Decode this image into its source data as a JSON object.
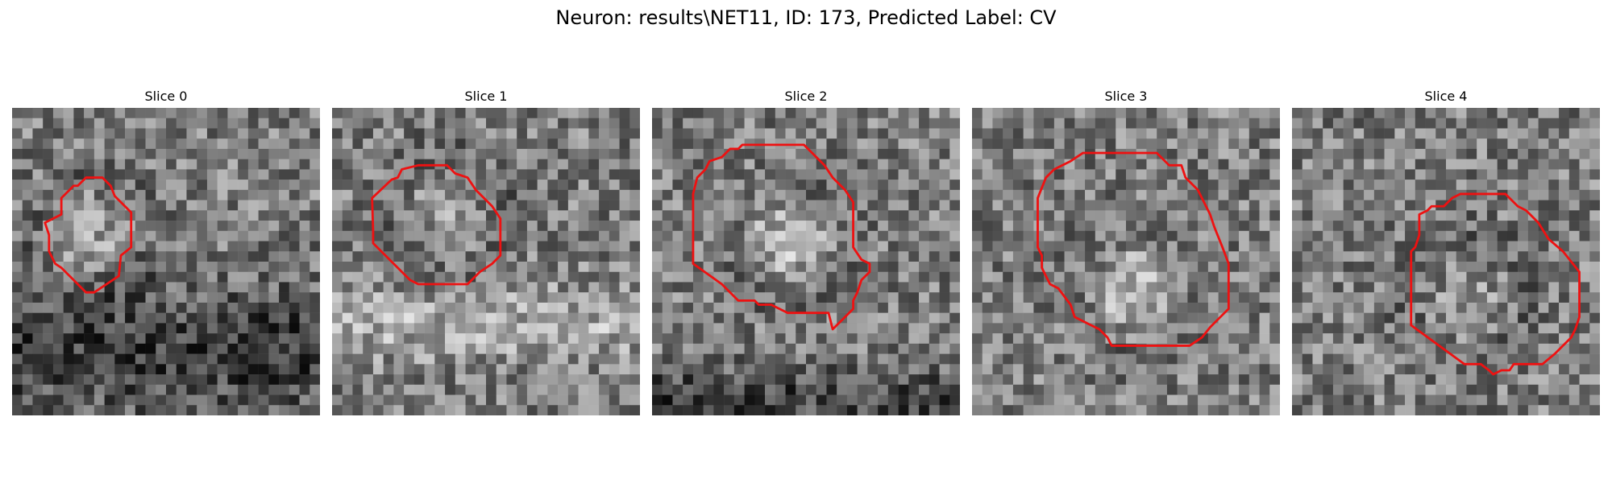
{
  "figure": {
    "title": "Neuron: results\\NET11, ID: 173, Predicted Label: CV"
  },
  "colors": {
    "contour": "#ee1111",
    "background": "#ffffff"
  },
  "slices": [
    {
      "label": "Slice 0",
      "seed": 11,
      "blob": [
        0.25,
        0.4
      ],
      "blobStrength": 38,
      "band": [
        0.77,
        0.2,
        -70
      ]
    },
    {
      "label": "Slice 1",
      "seed": 23,
      "blob": [
        0.35,
        0.33
      ],
      "blobStrength": 28,
      "band": [
        0.68,
        0.12,
        45
      ]
    },
    {
      "label": "Slice 2",
      "seed": 37,
      "blob": [
        0.42,
        0.42
      ],
      "blobStrength": 55,
      "band": [
        0.93,
        0.1,
        -60
      ]
    },
    {
      "label": "Slice 3",
      "seed": 51,
      "blob": [
        0.52,
        0.58
      ],
      "blobStrength": 65,
      "band": [
        0.0,
        0.0,
        0
      ]
    },
    {
      "label": "Slice 4",
      "seed": 67,
      "blob": [
        0.55,
        0.6
      ],
      "blobStrength": 25,
      "band": [
        0.0,
        0.0,
        0
      ]
    }
  ]
}
